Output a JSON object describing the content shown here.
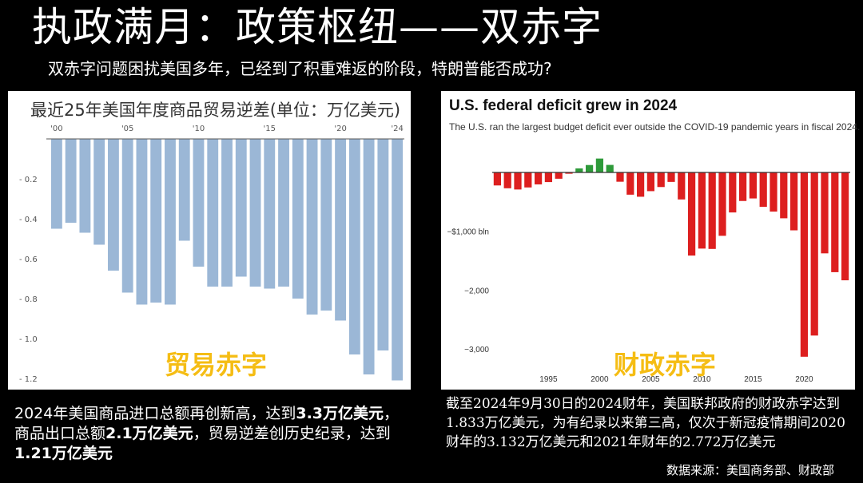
{
  "header": {
    "title": "执政满月：政策枢纽——双赤字",
    "subtitle": "双赤字问题困扰美国多年，已经到了积重难返的阶段，特朗普能否成功?"
  },
  "left_panel": {
    "overlay_label": "贸易赤字",
    "note": {
      "part1": "2024年美国商品进口总额再创新高，达到",
      "part2": "3.3万亿美元",
      "part3": "，商品出口总额",
      "part4": "2.1万亿美元",
      "part5": "，贸易逆差创历史纪录，达到",
      "part6": "1.21万亿美元"
    }
  },
  "right_panel": {
    "overlay_label": "财政赤字",
    "note": "截至2024年9月30日的2024财年，美国联邦政府的财政赤字达到1.833万亿美元，为有纪录以来第三高，仅次于新冠疫情期间2020财年的3.132万亿美元和2021年财年的2.772万亿美元"
  },
  "source": "数据来源：美国商务部、财政部",
  "colors": {
    "left_bar": "#9bb7d6",
    "deficit_bar": "#dd1f1f",
    "surplus_bar": "#2e9a3a",
    "overlay_text": "#f5bd14"
  },
  "chart_data": [
    {
      "type": "bar",
      "title": "最近25年美国年度商品贸易逆差(单位：万亿美元)",
      "x": [
        2000,
        2001,
        2002,
        2003,
        2004,
        2005,
        2006,
        2007,
        2008,
        2009,
        2010,
        2011,
        2012,
        2013,
        2014,
        2015,
        2016,
        2017,
        2018,
        2019,
        2020,
        2021,
        2022,
        2023,
        2024
      ],
      "values": [
        -0.45,
        -0.42,
        -0.47,
        -0.53,
        -0.66,
        -0.77,
        -0.83,
        -0.82,
        -0.83,
        -0.51,
        -0.64,
        -0.74,
        -0.74,
        -0.69,
        -0.74,
        -0.75,
        -0.74,
        -0.8,
        -0.88,
        -0.86,
        -0.91,
        -1.08,
        -1.18,
        -1.06,
        -1.21
      ],
      "x_tick_labels": [
        "'00",
        "'05",
        "'10",
        "'15",
        "'20",
        "'24"
      ],
      "y_tick_labels": [
        "- 0.2",
        "- 0.4",
        "- 0.6",
        "- 0.8",
        "- 1.0",
        "- 1.2"
      ],
      "y_ticks": [
        -0.2,
        -0.4,
        -0.6,
        -0.8,
        -1.0,
        -1.2
      ],
      "ylim": [
        -1.24,
        0
      ],
      "grid": false
    },
    {
      "type": "bar",
      "title": "U.S. federal deficit grew in 2024",
      "subtitle": "The U.S. ran the largest budget deficit ever outside the COVID-19 pandemic years in fiscal 2024.",
      "x": [
        1990,
        1991,
        1992,
        1993,
        1994,
        1995,
        1996,
        1997,
        1998,
        1999,
        2000,
        2001,
        2002,
        2003,
        2004,
        2005,
        2006,
        2007,
        2008,
        2009,
        2010,
        2011,
        2012,
        2013,
        2014,
        2015,
        2016,
        2017,
        2018,
        2019,
        2020,
        2021,
        2022,
        2023,
        2024
      ],
      "values": [
        -221,
        -269,
        -290,
        -255,
        -203,
        -164,
        -107,
        -22,
        69,
        126,
        236,
        128,
        -158,
        -378,
        -413,
        -318,
        -248,
        -161,
        -459,
        -1413,
        -1294,
        -1300,
        -1077,
        -680,
        -485,
        -442,
        -585,
        -665,
        -779,
        -984,
        -3132,
        -2772,
        -1375,
        -1695,
        -1833
      ],
      "x_tick_labels": [
        "1995",
        "2000",
        "2005",
        "2010",
        "2015",
        "2020"
      ],
      "y_tick_labels": [
        "−$1,000 bln",
        "−2,000",
        "−3,000"
      ],
      "y_ticks": [
        -1000,
        -2000,
        -3000
      ],
      "ylim": [
        -3200,
        400
      ],
      "grid": false
    }
  ]
}
